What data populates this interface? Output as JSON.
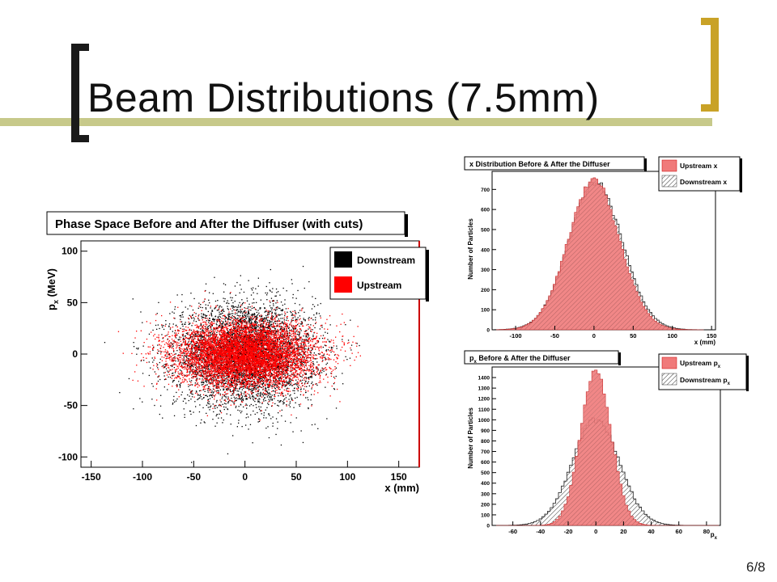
{
  "slide": {
    "title": "Beam Distributions (7.5mm)",
    "page_number": "6/8",
    "accent_color": "#c9a227",
    "bar_color": "#c7c98a"
  },
  "chart_data": [
    {
      "type": "scatter",
      "title": "Phase Space Before and After the Diffuser (with cuts)",
      "xlabel": "x (mm)",
      "ylabel_main": "p",
      "ylabel_sub": "x",
      "ylabel_tail": " (MeV)",
      "xlim": [
        -160,
        170
      ],
      "ylim": [
        -110,
        110
      ],
      "xticks": [
        -150,
        -100,
        -50,
        0,
        50,
        100,
        150
      ],
      "yticks": [
        -100,
        -50,
        0,
        50,
        100
      ],
      "xtick_labels": [
        "-150",
        "-100",
        "-50",
        "0",
        "50",
        "100",
        "150"
      ],
      "ytick_labels": [
        "-100",
        "-50",
        "0",
        "50",
        "100"
      ],
      "series": [
        {
          "name": "Downstream",
          "color": "#000000",
          "sigma_x": 34,
          "sigma_y": 25
        },
        {
          "name": "Upstream",
          "color": "#ff0000",
          "sigma_x": 34,
          "sigma_y": 16
        }
      ]
    },
    {
      "type": "histogram",
      "title": "x Distribution Before & After the Diffuser",
      "xlabel": "x (mm)",
      "ylabel": "Number of Particles",
      "xlim": [
        -130,
        155
      ],
      "ylim": [
        0,
        790
      ],
      "xticks": [
        -100,
        -50,
        0,
        50,
        100,
        150
      ],
      "yticks": [
        0,
        100,
        200,
        300,
        400,
        500,
        600,
        700
      ],
      "xtick_labels": [
        "-100",
        "-50",
        "0",
        "50",
        "100",
        "150"
      ],
      "ytick_labels": [
        "0",
        "100",
        "200",
        "300",
        "400",
        "500",
        "600",
        "700"
      ],
      "series": [
        {
          "name": "Upstream x",
          "name_main": "Upstream x",
          "name_sub": "",
          "fill": "#f07a7a",
          "peak": 740,
          "mean": 0,
          "sigma": 33
        },
        {
          "name": "Downstream x",
          "name_main": "Downstream x",
          "name_sub": "",
          "fill": "hatch",
          "peak": 730,
          "mean": 2,
          "sigma": 34
        }
      ]
    },
    {
      "type": "histogram",
      "title_main": "p",
      "title_sub": "x",
      "title_tail": " Before & After the Diffuser",
      "xlabel_main": "p",
      "xlabel_sub": "x",
      "ylabel": "Number of Particles",
      "xlim": [
        -75,
        90
      ],
      "ylim": [
        0,
        1500
      ],
      "xticks": [
        -60,
        -40,
        -20,
        0,
        20,
        40,
        60,
        80
      ],
      "yticks": [
        0,
        100,
        200,
        300,
        400,
        500,
        600,
        700,
        800,
        900,
        1000,
        1100,
        1200,
        1300,
        1400
      ],
      "xtick_labels": [
        "-60",
        "-40",
        "-20",
        "0",
        "20",
        "40",
        "60",
        "80"
      ],
      "ytick_labels": [
        "0",
        "100",
        "200",
        "300",
        "400",
        "500",
        "600",
        "700",
        "800",
        "900",
        "1000",
        "1100",
        "1200",
        "1300",
        "1400"
      ],
      "series": [
        {
          "name": "Upstream px",
          "name_main": "Upstream p",
          "name_sub": "x",
          "fill": "#f07a7a",
          "peak": 1460,
          "mean": 0,
          "sigma": 11
        },
        {
          "name": "Downstream px",
          "name_main": "Downstream p",
          "name_sub": "x",
          "fill": "hatch",
          "peak": 1000,
          "mean": 0,
          "sigma": 17
        }
      ]
    }
  ]
}
